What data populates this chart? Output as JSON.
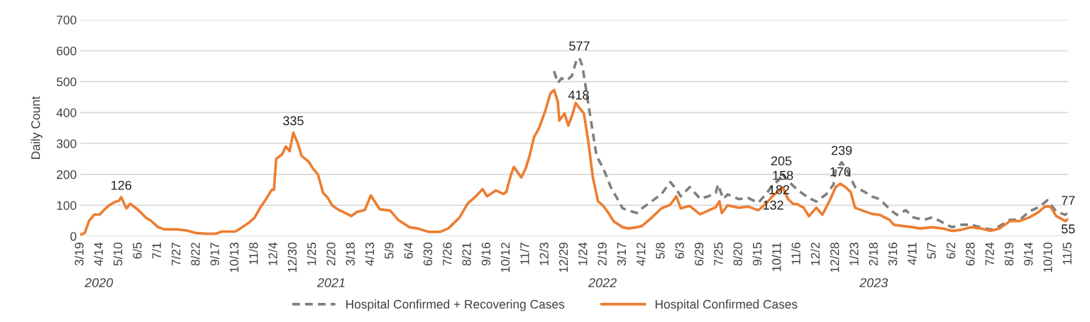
{
  "chart_data": {
    "type": "line",
    "ylabel": "Daily Count",
    "ylim": [
      0,
      700
    ],
    "yticks": [
      0,
      100,
      200,
      300,
      400,
      500,
      600,
      700
    ],
    "xlim": [
      "2020-03-19",
      "2023-11-05"
    ],
    "xticks": [
      {
        "value": "2020-03-19",
        "label": "3/19"
      },
      {
        "value": "2020-04-14",
        "label": "4/14"
      },
      {
        "value": "2020-05-10",
        "label": "5/10"
      },
      {
        "value": "2020-06-05",
        "label": "6/5"
      },
      {
        "value": "2020-07-01",
        "label": "7/1"
      },
      {
        "value": "2020-07-27",
        "label": "7/27"
      },
      {
        "value": "2020-08-22",
        "label": "8/22"
      },
      {
        "value": "2020-09-17",
        "label": "9/17"
      },
      {
        "value": "2020-10-13",
        "label": "10/13"
      },
      {
        "value": "2020-11-08",
        "label": "11/8"
      },
      {
        "value": "2020-12-04",
        "label": "12/4"
      },
      {
        "value": "2020-12-30",
        "label": "12/30"
      },
      {
        "value": "2021-01-25",
        "label": "1/25"
      },
      {
        "value": "2021-02-20",
        "label": "2/20"
      },
      {
        "value": "2021-03-18",
        "label": "3/18"
      },
      {
        "value": "2021-04-13",
        "label": "4/13"
      },
      {
        "value": "2021-05-09",
        "label": "5/9"
      },
      {
        "value": "2021-06-04",
        "label": "6/4"
      },
      {
        "value": "2021-06-30",
        "label": "6/30"
      },
      {
        "value": "2021-07-26",
        "label": "7/26"
      },
      {
        "value": "2021-08-21",
        "label": "8/21"
      },
      {
        "value": "2021-09-16",
        "label": "9/16"
      },
      {
        "value": "2021-10-12",
        "label": "10/12"
      },
      {
        "value": "2021-11-07",
        "label": "11/7"
      },
      {
        "value": "2021-12-03",
        "label": "12/3"
      },
      {
        "value": "2021-12-29",
        "label": "12/29"
      },
      {
        "value": "2022-01-24",
        "label": "1/24"
      },
      {
        "value": "2022-02-19",
        "label": "2/19"
      },
      {
        "value": "2022-03-17",
        "label": "3/17"
      },
      {
        "value": "2022-04-12",
        "label": "4/12"
      },
      {
        "value": "2022-05-08",
        "label": "5/8"
      },
      {
        "value": "2022-06-03",
        "label": "6/3"
      },
      {
        "value": "2022-06-29",
        "label": "6/29"
      },
      {
        "value": "2022-07-25",
        "label": "7/25"
      },
      {
        "value": "2022-08-20",
        "label": "8/20"
      },
      {
        "value": "2022-09-15",
        "label": "9/15"
      },
      {
        "value": "2022-10-11",
        "label": "10/11"
      },
      {
        "value": "2022-11-06",
        "label": "11/6"
      },
      {
        "value": "2022-12-02",
        "label": "12/2"
      },
      {
        "value": "2022-12-28",
        "label": "12/28"
      },
      {
        "value": "2023-01-23",
        "label": "1/23"
      },
      {
        "value": "2023-02-18",
        "label": "2/18"
      },
      {
        "value": "2023-03-16",
        "label": "3/16"
      },
      {
        "value": "2023-04-11",
        "label": "4/11"
      },
      {
        "value": "2023-05-07",
        "label": "5/7"
      },
      {
        "value": "2023-06-02",
        "label": "6/2"
      },
      {
        "value": "2023-06-28",
        "label": "6/28"
      },
      {
        "value": "2023-07-24",
        "label": "7/24"
      },
      {
        "value": "2023-08-19",
        "label": "8/19"
      },
      {
        "value": "2023-09-14",
        "label": "9/14"
      },
      {
        "value": "2023-10-10",
        "label": "10/10"
      },
      {
        "value": "2023-11-05",
        "label": "11/5"
      }
    ],
    "grid": "y",
    "legend": "bottom",
    "series": [
      {
        "name": "Hospital Confirmed + Recovering Cases",
        "color": "#7f7f7f",
        "line_style": "dashed",
        "x": [
          "2021-12-15",
          "2021-12-20",
          "2021-12-25",
          "2022-01-01",
          "2022-01-08",
          "2022-01-14",
          "2022-01-18",
          "2022-01-22",
          "2022-01-28",
          "2022-02-03",
          "2022-02-10",
          "2022-02-19",
          "2022-03-01",
          "2022-03-10",
          "2022-03-17",
          "2022-03-25",
          "2022-04-05",
          "2022-04-12",
          "2022-04-25",
          "2022-05-08",
          "2022-05-20",
          "2022-05-28",
          "2022-06-03",
          "2022-06-15",
          "2022-06-29",
          "2022-07-10",
          "2022-07-20",
          "2022-07-23",
          "2022-07-30",
          "2022-08-05",
          "2022-08-20",
          "2022-09-01",
          "2022-09-15",
          "2022-09-25",
          "2022-10-05",
          "2022-10-13",
          "2022-10-16",
          "2022-10-25",
          "2022-11-06",
          "2022-11-15",
          "2022-11-25",
          "2022-12-02",
          "2022-12-15",
          "2022-12-25",
          "2022-12-28",
          "2023-01-05",
          "2023-01-12",
          "2023-01-18",
          "2023-01-23",
          "2023-02-05",
          "2023-02-15",
          "2023-02-25",
          "2023-03-10",
          "2023-03-20",
          "2023-04-01",
          "2023-04-11",
          "2023-04-25",
          "2023-05-07",
          "2023-05-20",
          "2023-06-02",
          "2023-06-15",
          "2023-06-28",
          "2023-07-10",
          "2023-07-24",
          "2023-08-05",
          "2023-08-19",
          "2023-09-01",
          "2023-09-14",
          "2023-09-28",
          "2023-10-08",
          "2023-10-20",
          "2023-11-01",
          "2023-11-05"
        ],
        "values": [
          534,
          496,
          511,
          504,
          519,
          569,
          577,
          550,
          458,
          366,
          259,
          220,
          159,
          121,
          90,
          83,
          75,
          90,
          113,
          136,
          175,
          152,
          129,
          159,
          121,
          129,
          140,
          167,
          121,
          135,
          120,
          124,
          108,
          135,
          167,
          182,
          205,
          179,
          151,
          135,
          120,
          112,
          135,
          167,
          214,
          239,
          214,
          183,
          159,
          143,
          128,
          120,
          88,
          69,
          84,
          61,
          53,
          61,
          45,
          29,
          37,
          37,
          29,
          21,
          33,
          53,
          53,
          80,
          96,
          116,
          80,
          69,
          77
        ]
      },
      {
        "name": "Hospital Confirmed Cases",
        "color": "#ed7d31",
        "line_style": "solid",
        "x": [
          "2020-03-19",
          "2020-03-25",
          "2020-03-31",
          "2020-04-07",
          "2020-04-14",
          "2020-04-20",
          "2020-04-27",
          "2020-05-04",
          "2020-05-10",
          "2020-05-13",
          "2020-05-20",
          "2020-05-25",
          "2020-06-05",
          "2020-06-15",
          "2020-06-22",
          "2020-07-01",
          "2020-07-10",
          "2020-07-27",
          "2020-08-10",
          "2020-08-22",
          "2020-09-05",
          "2020-09-17",
          "2020-09-25",
          "2020-10-13",
          "2020-10-20",
          "2020-11-01",
          "2020-11-08",
          "2020-11-15",
          "2020-11-22",
          "2020-12-01",
          "2020-12-04",
          "2020-12-07",
          "2020-12-15",
          "2020-12-20",
          "2020-12-25",
          "2020-12-30",
          "2021-01-05",
          "2021-01-10",
          "2021-01-20",
          "2021-01-25",
          "2021-02-01",
          "2021-02-08",
          "2021-02-14",
          "2021-02-20",
          "2021-03-01",
          "2021-03-18",
          "2021-03-25",
          "2021-04-05",
          "2021-04-13",
          "2021-04-25",
          "2021-05-09",
          "2021-05-20",
          "2021-06-04",
          "2021-06-15",
          "2021-06-30",
          "2021-07-15",
          "2021-07-26",
          "2021-08-10",
          "2021-08-21",
          "2021-09-01",
          "2021-09-10",
          "2021-09-16",
          "2021-09-28",
          "2021-10-08",
          "2021-10-12",
          "2021-10-18",
          "2021-10-22",
          "2021-11-01",
          "2021-11-07",
          "2021-11-12",
          "2021-11-18",
          "2021-11-25",
          "2021-12-03",
          "2021-12-10",
          "2021-12-15",
          "2021-12-20",
          "2021-12-22",
          "2021-12-29",
          "2022-01-03",
          "2022-01-08",
          "2022-01-13",
          "2022-01-17",
          "2022-01-24",
          "2022-01-30",
          "2022-02-05",
          "2022-02-12",
          "2022-02-19",
          "2022-02-26",
          "2022-03-05",
          "2022-03-17",
          "2022-03-25",
          "2022-04-05",
          "2022-04-12",
          "2022-04-25",
          "2022-05-08",
          "2022-05-20",
          "2022-05-28",
          "2022-06-03",
          "2022-06-15",
          "2022-06-29",
          "2022-07-10",
          "2022-07-20",
          "2022-07-25",
          "2022-07-28",
          "2022-08-05",
          "2022-08-20",
          "2022-09-01",
          "2022-09-15",
          "2022-09-25",
          "2022-10-05",
          "2022-10-11",
          "2022-10-18",
          "2022-10-25",
          "2022-11-01",
          "2022-11-06",
          "2022-11-15",
          "2022-11-22",
          "2022-12-02",
          "2022-12-10",
          "2022-12-20",
          "2022-12-28",
          "2023-01-03",
          "2023-01-10",
          "2023-01-17",
          "2023-01-23",
          "2023-02-05",
          "2023-02-15",
          "2023-02-25",
          "2023-03-10",
          "2023-03-16",
          "2023-03-28",
          "2023-04-11",
          "2023-04-20",
          "2023-05-07",
          "2023-05-20",
          "2023-06-02",
          "2023-06-15",
          "2023-06-28",
          "2023-07-10",
          "2023-07-24",
          "2023-08-05",
          "2023-08-19",
          "2023-09-01",
          "2023-09-14",
          "2023-09-25",
          "2023-10-05",
          "2023-10-12",
          "2023-10-20",
          "2023-11-01",
          "2023-11-05"
        ],
        "values": [
          5,
          10,
          50,
          70,
          70,
          85,
          100,
          110,
          115,
          126,
          90,
          105,
          85,
          60,
          50,
          30,
          22,
          22,
          18,
          10,
          8,
          8,
          15,
          15,
          25,
          45,
          60,
          90,
          115,
          150,
          150,
          250,
          265,
          290,
          275,
          335,
          300,
          260,
          240,
          220,
          200,
          140,
          125,
          100,
          85,
          65,
          78,
          85,
          132,
          87,
          83,
          52,
          29,
          25,
          14,
          14,
          25,
          60,
          106,
          129,
          152,
          129,
          148,
          136,
          144,
          198,
          224,
          190,
          220,
          259,
          320,
          351,
          404,
          462,
          473,
          435,
          374,
          397,
          358,
          389,
          431,
          418,
          397,
          305,
          190,
          113,
          98,
          75,
          48,
          29,
          25,
          29,
          33,
          60,
          90,
          102,
          129,
          90,
          98,
          71,
          83,
          94,
          113,
          75,
          100,
          92,
          96,
          84,
          104,
          132,
          143,
          158,
          120,
          104,
          104,
          92,
          65,
          92,
          69,
          116,
          159,
          170,
          159,
          143,
          92,
          80,
          72,
          69,
          53,
          37,
          33,
          29,
          25,
          29,
          25,
          17,
          21,
          29,
          25,
          17,
          25,
          49,
          49,
          61,
          76,
          96,
          96,
          65,
          49,
          55
        ]
      }
    ],
    "annotations": [
      {
        "text": "126",
        "x": "2020-05-13",
        "y": 126
      },
      {
        "text": "335",
        "x": "2020-12-30",
        "y": 335
      },
      {
        "text": "577",
        "x": "2022-01-18",
        "y": 577
      },
      {
        "text": "418",
        "x": "2022-01-17",
        "y": 418
      },
      {
        "text": "205",
        "x": "2022-10-16",
        "y": 205
      },
      {
        "text": "182",
        "x": "2022-10-13",
        "y": 182
      },
      {
        "text": "158",
        "x": "2022-10-18",
        "y": 158
      },
      {
        "text": "132",
        "x": "2022-10-05",
        "y": 132
      },
      {
        "text": "239",
        "x": "2023-01-05",
        "y": 239
      },
      {
        "text": "170",
        "x": "2023-01-03",
        "y": 170
      },
      {
        "text": "77",
        "x": "2023-11-05",
        "y": 77
      },
      {
        "text": "55",
        "x": "2023-11-05",
        "y": 55
      },
      "2020",
      "2021",
      "2022",
      "2023"
    ]
  }
}
